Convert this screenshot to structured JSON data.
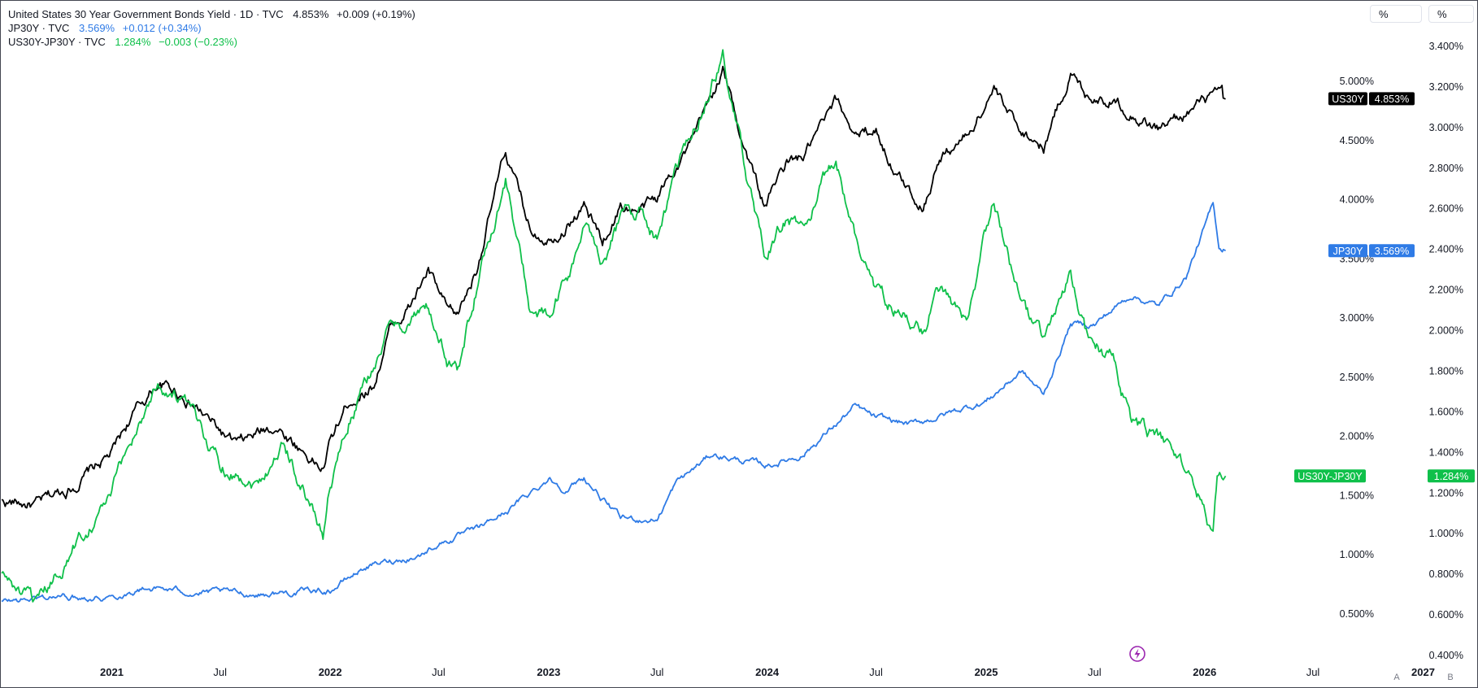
{
  "legend": {
    "us30y": {
      "name": "United States 30 Year Government Bonds Yield · 1D · TVC",
      "value": "4.853%",
      "change": "+0.009 (+0.19%)",
      "color": "#000000"
    },
    "jp30y": {
      "name": "JP30Y · TVC",
      "value": "3.569%",
      "change": "+0.012 (+0.34%)",
      "color": "#2f7be6"
    },
    "spread": {
      "name": "US30Y-JP30Y · TVC",
      "value": "1.284%",
      "change": "−0.003 (−0.23%)",
      "color": "#0fc04a"
    }
  },
  "scale_buttons": [
    "%",
    "%"
  ],
  "corner_buttons": [
    "A",
    "B"
  ],
  "badges": {
    "us30y": {
      "label": "US30Y",
      "value": "4.853%"
    },
    "jp30y": {
      "label": "JP30Y",
      "value": "3.569%"
    },
    "spread": {
      "label": "US30Y-JP30Y",
      "value": "1.284%"
    }
  },
  "chart_data": {
    "type": "line",
    "x_axis": {
      "labels": [
        "2021",
        "Jul",
        "2022",
        "Jul",
        "2023",
        "Jul",
        "2024",
        "Jul",
        "2025",
        "Jul",
        "2026",
        "Jul",
        "2027"
      ],
      "range": [
        "2020-07-01",
        "2027-03-31"
      ]
    },
    "y_axis_inner": {
      "ticks": [
        "5.000%",
        "4.500%",
        "4.000%",
        "3.500%",
        "3.000%",
        "2.500%",
        "2.000%",
        "1.500%",
        "1.000%",
        "0.500%"
      ],
      "range": [
        0.0,
        5.55
      ],
      "applies_to": [
        "US30Y",
        "JP30Y"
      ]
    },
    "y_axis_outer": {
      "ticks": [
        "3.400%",
        "3.200%",
        "3.000%",
        "2.800%",
        "2.600%",
        "2.400%",
        "2.200%",
        "2.000%",
        "1.800%",
        "1.600%",
        "1.400%",
        "1.200%",
        "1.000%",
        "0.800%",
        "0.600%",
        "0.400%"
      ],
      "range": [
        0.35,
        3.4
      ],
      "applies_to": [
        "US30Y-JP30Y"
      ]
    },
    "series": [
      {
        "name": "US30Y",
        "color": "#000000",
        "axis": "inner",
        "points": [
          [
            "2020-07-01",
            1.45
          ],
          [
            "2020-09-01",
            1.42
          ],
          [
            "2020-11-01",
            1.6
          ],
          [
            "2021-01-01",
            1.85
          ],
          [
            "2021-02-01",
            2.15
          ],
          [
            "2021-03-19",
            2.45
          ],
          [
            "2021-05-01",
            2.35
          ],
          [
            "2021-07-19",
            1.95
          ],
          [
            "2021-08-01",
            1.92
          ],
          [
            "2021-10-01",
            2.1
          ],
          [
            "2021-12-20",
            1.72
          ],
          [
            "2022-01-01",
            1.95
          ],
          [
            "2022-02-01",
            2.3
          ],
          [
            "2022-03-15",
            2.45
          ],
          [
            "2022-04-10",
            2.9
          ],
          [
            "2022-05-15",
            3.1
          ],
          [
            "2022-06-14",
            3.4
          ],
          [
            "2022-07-15",
            3.05
          ],
          [
            "2022-08-01",
            3.0
          ],
          [
            "2022-09-01",
            3.4
          ],
          [
            "2022-10-21",
            4.4
          ],
          [
            "2022-11-15",
            4.0
          ],
          [
            "2022-12-01",
            3.75
          ],
          [
            "2023-01-01",
            3.7
          ],
          [
            "2023-02-01",
            3.8
          ],
          [
            "2023-03-01",
            3.95
          ],
          [
            "2023-04-01",
            3.65
          ],
          [
            "2023-05-01",
            3.95
          ],
          [
            "2023-06-01",
            3.9
          ],
          [
            "2023-07-01",
            4.0
          ],
          [
            "2023-08-01",
            4.3
          ],
          [
            "2023-09-01",
            4.5
          ],
          [
            "2023-10-19",
            5.1
          ],
          [
            "2023-11-15",
            4.6
          ],
          [
            "2023-12-27",
            3.95
          ],
          [
            "2024-02-01",
            4.3
          ],
          [
            "2024-03-01",
            4.35
          ],
          [
            "2024-04-25",
            4.8
          ],
          [
            "2024-06-01",
            4.55
          ],
          [
            "2024-07-01",
            4.6
          ],
          [
            "2024-08-05",
            4.2
          ],
          [
            "2024-09-16",
            3.95
          ],
          [
            "2024-10-15",
            4.35
          ],
          [
            "2024-12-01",
            4.55
          ],
          [
            "2025-01-14",
            4.95
          ],
          [
            "2025-02-01",
            4.75
          ],
          [
            "2025-03-01",
            4.6
          ],
          [
            "2025-04-07",
            4.45
          ],
          [
            "2025-05-22",
            5.08
          ],
          [
            "2025-06-15",
            4.9
          ],
          [
            "2025-08-01",
            4.85
          ],
          [
            "2025-09-01",
            4.75
          ],
          [
            "2025-10-15",
            4.6
          ],
          [
            "2025-11-15",
            4.68
          ],
          [
            "2025-12-15",
            4.78
          ],
          [
            "2026-01-22",
            4.88
          ],
          [
            "2026-02-05",
            4.85
          ]
        ]
      },
      {
        "name": "JP30Y",
        "color": "#2f7be6",
        "axis": "inner",
        "points": [
          [
            "2020-07-01",
            0.6
          ],
          [
            "2020-10-01",
            0.65
          ],
          [
            "2021-01-01",
            0.65
          ],
          [
            "2021-03-01",
            0.72
          ],
          [
            "2021-06-01",
            0.68
          ],
          [
            "2021-09-01",
            0.67
          ],
          [
            "2022-01-01",
            0.7
          ],
          [
            "2022-03-01",
            0.9
          ],
          [
            "2022-06-01",
            1.0
          ],
          [
            "2022-07-01",
            1.1
          ],
          [
            "2022-09-01",
            1.2
          ],
          [
            "2022-11-01",
            1.4
          ],
          [
            "2022-12-20",
            1.6
          ],
          [
            "2023-01-01",
            1.65
          ],
          [
            "2023-02-01",
            1.55
          ],
          [
            "2023-03-01",
            1.65
          ],
          [
            "2023-05-01",
            1.3
          ],
          [
            "2023-07-01",
            1.3
          ],
          [
            "2023-08-01",
            1.6
          ],
          [
            "2023-10-01",
            1.85
          ],
          [
            "2024-01-01",
            1.75
          ],
          [
            "2024-03-01",
            1.85
          ],
          [
            "2024-05-27",
            2.25
          ],
          [
            "2024-07-01",
            2.15
          ],
          [
            "2024-09-01",
            2.1
          ],
          [
            "2024-11-01",
            2.2
          ],
          [
            "2025-01-01",
            2.3
          ],
          [
            "2025-03-01",
            2.55
          ],
          [
            "2025-04-07",
            2.35
          ],
          [
            "2025-05-22",
            2.95
          ],
          [
            "2025-07-01",
            2.95
          ],
          [
            "2025-09-01",
            3.2
          ],
          [
            "2025-10-15",
            3.1
          ],
          [
            "2025-12-01",
            3.35
          ],
          [
            "2026-01-15",
            3.95
          ],
          [
            "2026-01-25",
            3.6
          ],
          [
            "2026-02-05",
            3.569
          ]
        ]
      },
      {
        "name": "US30Y-JP30Y",
        "color": "#0fc04a",
        "axis": "outer",
        "points": [
          [
            "2020-07-01",
            0.8
          ],
          [
            "2020-09-01",
            0.62
          ],
          [
            "2020-11-01",
            0.95
          ],
          [
            "2021-01-01",
            1.2
          ],
          [
            "2021-02-01",
            1.45
          ],
          [
            "2021-03-19",
            1.75
          ],
          [
            "2021-05-01",
            1.65
          ],
          [
            "2021-07-01",
            1.35
          ],
          [
            "2021-09-01",
            1.25
          ],
          [
            "2021-10-15",
            1.45
          ],
          [
            "2021-12-20",
            1.0
          ],
          [
            "2022-01-01",
            1.25
          ],
          [
            "2022-02-01",
            1.55
          ],
          [
            "2022-04-10",
            2.0
          ],
          [
            "2022-06-14",
            2.1
          ],
          [
            "2022-07-15",
            1.85
          ],
          [
            "2022-08-01",
            1.8
          ],
          [
            "2022-09-01",
            2.2
          ],
          [
            "2022-10-21",
            2.75
          ],
          [
            "2022-12-01",
            2.1
          ],
          [
            "2023-01-01",
            2.05
          ],
          [
            "2023-02-01",
            2.25
          ],
          [
            "2023-03-01",
            2.5
          ],
          [
            "2023-04-01",
            2.35
          ],
          [
            "2023-05-01",
            2.55
          ],
          [
            "2023-06-01",
            2.6
          ],
          [
            "2023-07-01",
            2.45
          ],
          [
            "2023-08-01",
            2.75
          ],
          [
            "2023-10-19",
            3.35
          ],
          [
            "2023-11-15",
            2.95
          ],
          [
            "2023-12-27",
            2.35
          ],
          [
            "2024-02-01",
            2.55
          ],
          [
            "2024-03-01",
            2.5
          ],
          [
            "2024-04-25",
            2.85
          ],
          [
            "2024-06-01",
            2.4
          ],
          [
            "2024-07-01",
            2.2
          ],
          [
            "2024-08-05",
            2.1
          ],
          [
            "2024-09-16",
            2.0
          ],
          [
            "2024-10-15",
            2.2
          ],
          [
            "2024-12-01",
            2.0
          ],
          [
            "2025-01-14",
            2.65
          ],
          [
            "2025-02-01",
            2.45
          ],
          [
            "2025-03-01",
            2.1
          ],
          [
            "2025-04-07",
            1.95
          ],
          [
            "2025-05-22",
            2.25
          ],
          [
            "2025-06-15",
            2.0
          ],
          [
            "2025-08-01",
            1.85
          ],
          [
            "2025-09-01",
            1.55
          ],
          [
            "2025-10-15",
            1.45
          ],
          [
            "2025-11-15",
            1.4
          ],
          [
            "2025-12-15",
            1.25
          ],
          [
            "2026-01-15",
            1.0
          ],
          [
            "2026-01-22",
            1.22
          ],
          [
            "2026-02-05",
            1.284
          ]
        ]
      }
    ]
  }
}
